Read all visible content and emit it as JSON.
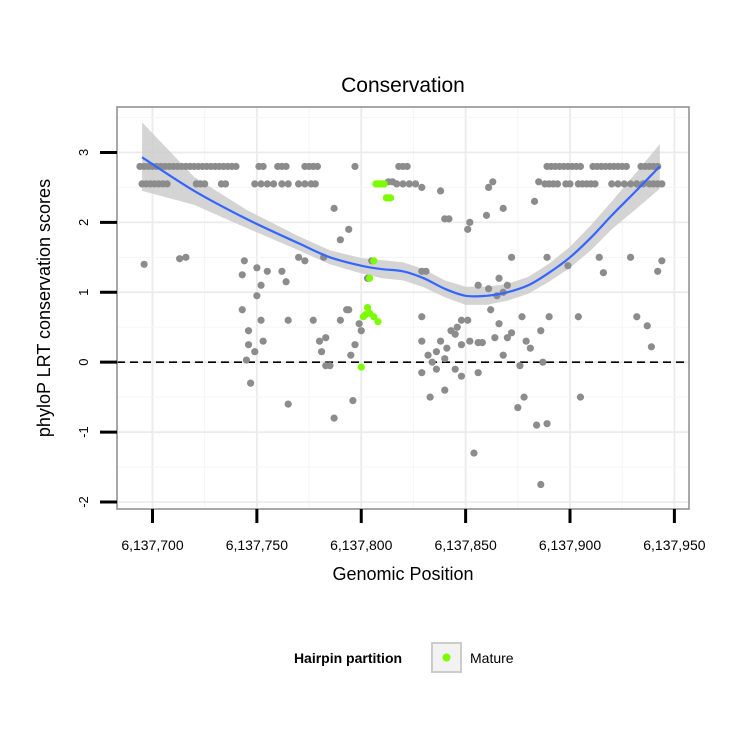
{
  "chart_data": {
    "type": "scatter",
    "title": "Conservation",
    "xlabel": "Genomic Position",
    "ylabel": "phyloP LRT conservation scores",
    "xlim": [
      6137683,
      6137957
    ],
    "ylim": [
      -2.1,
      3.65
    ],
    "x_ticks": [
      6137700,
      6137750,
      6137800,
      6137850,
      6137900,
      6137950
    ],
    "x_tick_labels": [
      "6,137,700",
      "6,137,750",
      "6,137,800",
      "6,137,850",
      "6,137,900",
      "6,137,950"
    ],
    "y_ticks": [
      -2,
      -1,
      0,
      1,
      2,
      3
    ],
    "y_tick_labels": [
      "-2",
      "-1",
      "0",
      "1",
      "2",
      "3"
    ],
    "grid": true,
    "reference_line": {
      "y": 0,
      "style": "dashed"
    },
    "legend": {
      "title": "Hairpin partition",
      "entries": [
        "Mature"
      ],
      "position": "bottom"
    },
    "colors": {
      "points": "#8c8c8c",
      "mature": "#7cfc00",
      "smooth": "#3366ff",
      "ribbon": "#cccccc"
    },
    "series": [
      {
        "role": "points",
        "points": [
          [
            6137694,
            2.8
          ],
          [
            6137695,
            2.55
          ],
          [
            6137696,
            2.8
          ],
          [
            6137697,
            2.55
          ],
          [
            6137698,
            2.8
          ],
          [
            6137699,
            2.55
          ],
          [
            6137700,
            2.8
          ],
          [
            6137701,
            2.55
          ],
          [
            6137702,
            2.8
          ],
          [
            6137703,
            2.55
          ],
          [
            6137704,
            2.8
          ],
          [
            6137705,
            2.55
          ],
          [
            6137706,
            2.8
          ],
          [
            6137707,
            2.55
          ],
          [
            6137708,
            2.8
          ],
          [
            6137710,
            2.8
          ],
          [
            6137712,
            2.8
          ],
          [
            6137714,
            2.8
          ],
          [
            6137716,
            2.8
          ],
          [
            6137718,
            2.8
          ],
          [
            6137720,
            2.8
          ],
          [
            6137721,
            2.55
          ],
          [
            6137722,
            2.8
          ],
          [
            6137723,
            2.55
          ],
          [
            6137724,
            2.8
          ],
          [
            6137725,
            2.55
          ],
          [
            6137726,
            2.8
          ],
          [
            6137728,
            2.8
          ],
          [
            6137730,
            2.8
          ],
          [
            6137732,
            2.8
          ],
          [
            6137733,
            2.55
          ],
          [
            6137734,
            2.8
          ],
          [
            6137735,
            2.55
          ],
          [
            6137736,
            2.8
          ],
          [
            6137738,
            2.8
          ],
          [
            6137740,
            2.8
          ],
          [
            6137751,
            2.8
          ],
          [
            6137753,
            2.8
          ],
          [
            6137760,
            2.8
          ],
          [
            6137762,
            2.8
          ],
          [
            6137764,
            2.8
          ],
          [
            6137773,
            2.8
          ],
          [
            6137775,
            2.8
          ],
          [
            6137777,
            2.8
          ],
          [
            6137779,
            2.8
          ],
          [
            6137797,
            2.8
          ],
          [
            6137818,
            2.8
          ],
          [
            6137820,
            2.8
          ],
          [
            6137822,
            2.8
          ],
          [
            6137749,
            2.55
          ],
          [
            6137752,
            2.55
          ],
          [
            6137755,
            2.55
          ],
          [
            6137758,
            2.55
          ],
          [
            6137762,
            2.55
          ],
          [
            6137765,
            2.55
          ],
          [
            6137770,
            2.55
          ],
          [
            6137773,
            2.55
          ],
          [
            6137776,
            2.55
          ],
          [
            6137778,
            2.55
          ],
          [
            6137813,
            2.58
          ],
          [
            6137815,
            2.58
          ],
          [
            6137817,
            2.55
          ],
          [
            6137820,
            2.55
          ],
          [
            6137823,
            2.55
          ],
          [
            6137826,
            2.55
          ],
          [
            6137829,
            2.5
          ],
          [
            6137838,
            2.45
          ],
          [
            6137861,
            2.5
          ],
          [
            6137863,
            2.58
          ],
          [
            6137888,
            2.55
          ],
          [
            6137890,
            2.55
          ],
          [
            6137892,
            2.55
          ],
          [
            6137894,
            2.55
          ],
          [
            6137898,
            2.55
          ],
          [
            6137900,
            2.55
          ],
          [
            6137904,
            2.55
          ],
          [
            6137906,
            2.55
          ],
          [
            6137908,
            2.55
          ],
          [
            6137910,
            2.55
          ],
          [
            6137912,
            2.55
          ],
          [
            6137920,
            2.55
          ],
          [
            6137923,
            2.55
          ],
          [
            6137926,
            2.55
          ],
          [
            6137929,
            2.55
          ],
          [
            6137932,
            2.55
          ],
          [
            6137935,
            2.55
          ],
          [
            6137938,
            2.55
          ],
          [
            6137940,
            2.55
          ],
          [
            6137942,
            2.55
          ],
          [
            6137944,
            2.55
          ],
          [
            6137889,
            2.8
          ],
          [
            6137891,
            2.8
          ],
          [
            6137893,
            2.8
          ],
          [
            6137895,
            2.8
          ],
          [
            6137897,
            2.8
          ],
          [
            6137899,
            2.8
          ],
          [
            6137901,
            2.8
          ],
          [
            6137903,
            2.8
          ],
          [
            6137905,
            2.8
          ],
          [
            6137911,
            2.8
          ],
          [
            6137913,
            2.8
          ],
          [
            6137915,
            2.8
          ],
          [
            6137917,
            2.8
          ],
          [
            6137919,
            2.8
          ],
          [
            6137921,
            2.8
          ],
          [
            6137923,
            2.8
          ],
          [
            6137925,
            2.8
          ],
          [
            6137927,
            2.8
          ],
          [
            6137934,
            2.8
          ],
          [
            6137936,
            2.8
          ],
          [
            6137938,
            2.8
          ],
          [
            6137940,
            2.8
          ],
          [
            6137942,
            2.8
          ],
          [
            6137787,
            2.2
          ],
          [
            6137790,
            1.75
          ],
          [
            6137794,
            1.9
          ],
          [
            6137851,
            1.9
          ],
          [
            6137852,
            2.0
          ],
          [
            6137840,
            2.05
          ],
          [
            6137842,
            2.05
          ],
          [
            6137860,
            2.1
          ],
          [
            6137868,
            2.2
          ],
          [
            6137883,
            2.3
          ],
          [
            6137885,
            2.58
          ],
          [
            6137696,
            1.4
          ],
          [
            6137713,
            1.48
          ],
          [
            6137716,
            1.5
          ],
          [
            6137744,
            1.45
          ],
          [
            6137743,
            1.25
          ],
          [
            6137750,
            1.35
          ],
          [
            6137752,
            1.1
          ],
          [
            6137755,
            1.3
          ],
          [
            6137762,
            1.3
          ],
          [
            6137764,
            1.15
          ],
          [
            6137770,
            1.5
          ],
          [
            6137773,
            1.45
          ],
          [
            6137782,
            1.5
          ],
          [
            6137803,
            1.2
          ],
          [
            6137805,
            1.45
          ],
          [
            6137829,
            1.3
          ],
          [
            6137831,
            1.3
          ],
          [
            6137872,
            1.5
          ],
          [
            6137870,
            1.1
          ],
          [
            6137868,
            1.0
          ],
          [
            6137866,
            1.2
          ],
          [
            6137865,
            0.95
          ],
          [
            6137861,
            1.05
          ],
          [
            6137856,
            1.1
          ],
          [
            6137889,
            1.5
          ],
          [
            6137899,
            1.38
          ],
          [
            6137914,
            1.5
          ],
          [
            6137916,
            1.28
          ],
          [
            6137929,
            1.5
          ],
          [
            6137942,
            1.3
          ],
          [
            6137944,
            1.45
          ],
          [
            6137743,
            0.75
          ],
          [
            6137746,
            0.45
          ],
          [
            6137746,
            0.25
          ],
          [
            6137749,
            0.15
          ],
          [
            6137750,
            0.95
          ],
          [
            6137752,
            0.6
          ],
          [
            6137753,
            0.3
          ],
          [
            6137765,
            0.6
          ],
          [
            6137777,
            0.6
          ],
          [
            6137780,
            0.3
          ],
          [
            6137781,
            0.15
          ],
          [
            6137783,
            0.35
          ],
          [
            6137785,
            -0.05
          ],
          [
            6137790,
            0.6
          ],
          [
            6137793,
            0.75
          ],
          [
            6137794,
            0.75
          ],
          [
            6137795,
            0.1
          ],
          [
            6137797,
            0.25
          ],
          [
            6137799,
            0.55
          ],
          [
            6137800,
            0.45
          ],
          [
            6137829,
            0.65
          ],
          [
            6137829,
            0.3
          ],
          [
            6137832,
            0.1
          ],
          [
            6137834,
            0.0
          ],
          [
            6137836,
            0.15
          ],
          [
            6137838,
            0.3
          ],
          [
            6137840,
            0.05
          ],
          [
            6137841,
            0.2
          ],
          [
            6137843,
            0.45
          ],
          [
            6137845,
            0.4
          ],
          [
            6137846,
            0.5
          ],
          [
            6137848,
            0.6
          ],
          [
            6137848,
            0.25
          ],
          [
            6137851,
            0.6
          ],
          [
            6137852,
            0.3
          ],
          [
            6137856,
            0.28
          ],
          [
            6137858,
            0.28
          ],
          [
            6137862,
            0.75
          ],
          [
            6137864,
            0.35
          ],
          [
            6137866,
            0.55
          ],
          [
            6137868,
            0.1
          ],
          [
            6137870,
            0.35
          ],
          [
            6137872,
            0.42
          ],
          [
            6137876,
            -0.05
          ],
          [
            6137877,
            0.65
          ],
          [
            6137879,
            0.3
          ],
          [
            6137881,
            0.2
          ],
          [
            6137886,
            0.45
          ],
          [
            6137890,
            0.65
          ],
          [
            6137904,
            0.65
          ],
          [
            6137932,
            0.65
          ],
          [
            6137937,
            0.52
          ],
          [
            6137939,
            0.22
          ],
          [
            6137745,
            0.03
          ],
          [
            6137747,
            -0.3
          ],
          [
            6137765,
            -0.6
          ],
          [
            6137783,
            -0.05
          ],
          [
            6137787,
            -0.8
          ],
          [
            6137796,
            -0.55
          ],
          [
            6137829,
            -0.15
          ],
          [
            6137833,
            -0.5
          ],
          [
            6137836,
            -0.1
          ],
          [
            6137840,
            -0.4
          ],
          [
            6137845,
            -0.1
          ],
          [
            6137848,
            -0.2
          ],
          [
            6137856,
            -0.15
          ],
          [
            6137854,
            -1.3
          ],
          [
            6137875,
            -0.65
          ],
          [
            6137878,
            -0.5
          ],
          [
            6137884,
            -0.9
          ],
          [
            6137886,
            -1.75
          ],
          [
            6137889,
            -0.88
          ],
          [
            6137887,
            0.0
          ],
          [
            6137905,
            -0.5
          ]
        ]
      },
      {
        "name": "Mature",
        "points": [
          [
            6137800,
            -0.07
          ],
          [
            6137803,
            0.78
          ],
          [
            6137802,
            0.68
          ],
          [
            6137804,
            0.7
          ],
          [
            6137806,
            0.65
          ],
          [
            6137808,
            0.58
          ],
          [
            6137801,
            0.65
          ],
          [
            6137804,
            1.2
          ],
          [
            6137806,
            1.45
          ],
          [
            6137807,
            2.55
          ],
          [
            6137808,
            2.55
          ],
          [
            6137809,
            2.55
          ],
          [
            6137810,
            2.55
          ],
          [
            6137811,
            2.55
          ],
          [
            6137812,
            2.35
          ],
          [
            6137813,
            2.35
          ],
          [
            6137814,
            2.35
          ]
        ]
      }
    ],
    "smooth": {
      "x": [
        6137695,
        6137720,
        6137745,
        6137770,
        6137785,
        6137800,
        6137810,
        6137820,
        6137830,
        6137840,
        6137850,
        6137860,
        6137870,
        6137880,
        6137890,
        6137900,
        6137910,
        6137920,
        6137930,
        6137943
      ],
      "y": [
        2.93,
        2.45,
        2.05,
        1.7,
        1.5,
        1.38,
        1.33,
        1.3,
        1.2,
        1.05,
        0.95,
        0.95,
        1.0,
        1.1,
        1.28,
        1.5,
        1.78,
        2.1,
        2.4,
        2.8
      ],
      "lower": [
        2.45,
        2.25,
        1.92,
        1.6,
        1.4,
        1.27,
        1.2,
        1.17,
        1.07,
        0.93,
        0.82,
        0.82,
        0.88,
        0.98,
        1.15,
        1.35,
        1.6,
        1.9,
        2.15,
        2.48
      ],
      "upper": [
        3.43,
        2.65,
        2.18,
        1.8,
        1.6,
        1.49,
        1.46,
        1.43,
        1.33,
        1.17,
        1.08,
        1.08,
        1.12,
        1.22,
        1.41,
        1.65,
        1.96,
        2.3,
        2.65,
        3.12
      ]
    }
  }
}
